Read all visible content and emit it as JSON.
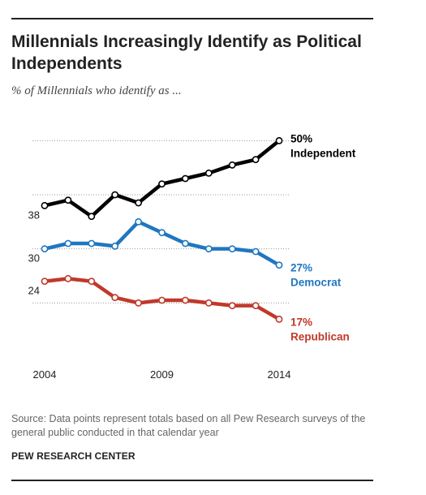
{
  "title": "Millennials Increasingly Identify as Political Independents",
  "subtitle": "% of Millennials who identify as ...",
  "source": "Source: Data points represent totals based on all Pew Research surveys of the general public conducted in that calendar year",
  "credit": "PEW RESEARCH CENTER",
  "chart_data": {
    "type": "line",
    "x": [
      2004,
      2005,
      2006,
      2007,
      2008,
      2009,
      2010,
      2011,
      2012,
      2013,
      2014
    ],
    "xticks": [
      "2004",
      "2009",
      "2014"
    ],
    "ylim": [
      10,
      55
    ],
    "grid": true,
    "series": [
      {
        "name": "Independent",
        "color": "#000000",
        "values": [
          38,
          39,
          36,
          40,
          38.5,
          42,
          43,
          44,
          45.5,
          46.5,
          50
        ],
        "start_label": "38",
        "end_label_value": "50%",
        "end_label_name": "Independent"
      },
      {
        "name": "Democrat",
        "color": "#1f77c0",
        "values": [
          30,
          31,
          31,
          30.5,
          35,
          33,
          31,
          30,
          30,
          29.5,
          27
        ],
        "start_label": "30",
        "end_label_value": "27%",
        "end_label_name": "Democrat"
      },
      {
        "name": "Republican",
        "color": "#c0392b",
        "values": [
          24,
          24.5,
          24,
          21,
          20,
          20.5,
          20.5,
          20,
          19.5,
          19.5,
          17
        ],
        "start_label": "24",
        "end_label_value": "17%",
        "end_label_name": "Republican"
      }
    ]
  }
}
